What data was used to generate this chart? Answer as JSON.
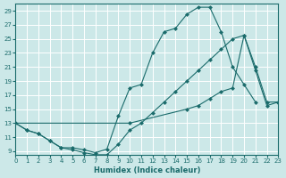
{
  "xlabel": "Humidex (Indice chaleur)",
  "bg_color": "#cce8e8",
  "grid_color": "#ffffff",
  "line_color": "#1a6b6b",
  "xlim": [
    0,
    23
  ],
  "ylim": [
    8.5,
    30
  ],
  "xticks": [
    0,
    1,
    2,
    3,
    4,
    5,
    6,
    7,
    8,
    9,
    10,
    11,
    12,
    13,
    14,
    15,
    16,
    17,
    18,
    19,
    20,
    21,
    22,
    23
  ],
  "yticks": [
    9,
    11,
    13,
    15,
    17,
    19,
    21,
    23,
    25,
    27,
    29
  ],
  "line1_x": [
    0,
    1,
    2,
    3,
    4,
    5,
    6,
    7,
    8,
    9,
    10,
    11,
    12,
    13,
    14,
    15,
    16,
    17,
    18,
    19,
    20,
    21
  ],
  "line1_y": [
    13,
    12,
    11.5,
    10.5,
    9.5,
    9.5,
    9.2,
    8.8,
    9.3,
    14.0,
    18.0,
    18.5,
    23.0,
    26.0,
    26.5,
    28.5,
    29.5,
    29.5,
    26.0,
    21.0,
    18.5,
    16.0
  ],
  "line2_x": [
    0,
    1,
    2,
    3,
    4,
    5,
    6,
    7,
    8,
    9,
    10,
    11,
    12,
    13,
    14,
    15,
    16,
    17,
    18,
    19,
    20,
    21,
    22,
    23
  ],
  "line2_y": [
    13,
    12,
    11.5,
    10.5,
    9.5,
    9.2,
    8.8,
    8.5,
    8.5,
    10.0,
    12.0,
    13.0,
    14.5,
    16.0,
    17.5,
    19.0,
    20.5,
    22.0,
    23.5,
    25.0,
    25.5,
    20.5,
    15.5,
    16.0
  ],
  "line3_x": [
    0,
    10,
    15,
    16,
    17,
    18,
    19,
    20,
    21,
    22,
    23
  ],
  "line3_y": [
    13,
    13,
    15,
    15.5,
    16.5,
    17.5,
    18.0,
    25.5,
    21.0,
    16.0,
    16.0
  ]
}
